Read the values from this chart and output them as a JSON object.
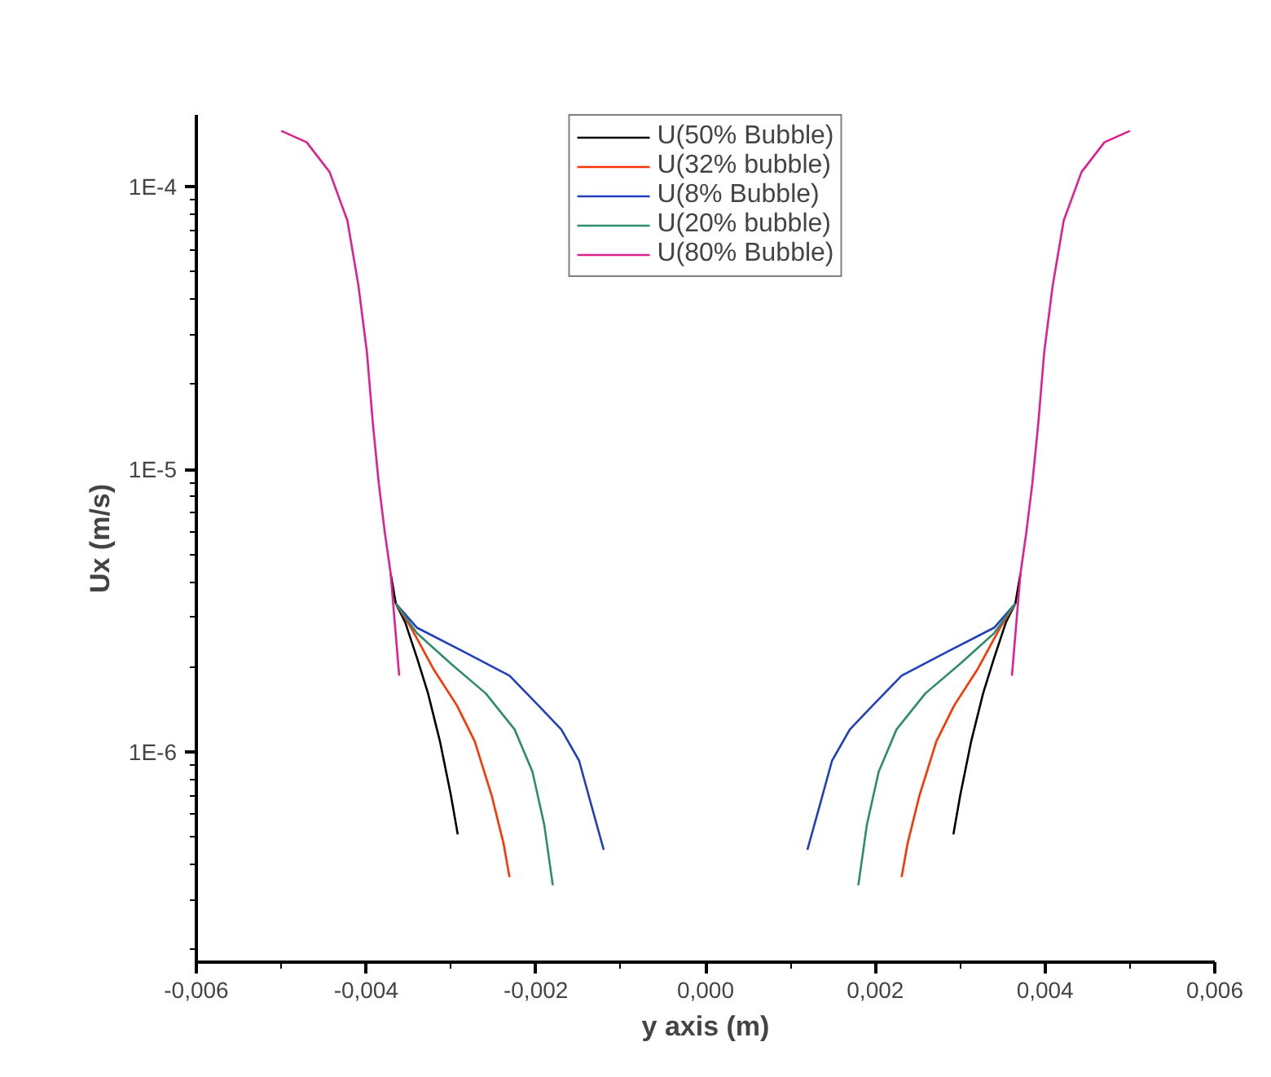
{
  "chart_data": {
    "type": "line",
    "xlabel": "y axis (m)",
    "ylabel": "Ux (m/s)",
    "log": "y",
    "grid": false,
    "legend": "top",
    "marker": "none",
    "line_style": "solid",
    "xlim": [
      -0.006,
      0.006
    ],
    "ylim": [
      1.8e-07,
      0.00018
    ],
    "xticks": [
      {
        "value": -0.006,
        "label": "-0,006"
      },
      {
        "value": -0.004,
        "label": "-0,004"
      },
      {
        "value": -0.002,
        "label": "-0,002"
      },
      {
        "value": 0,
        "label": "0,000"
      },
      {
        "value": 0.002,
        "label": "0,002"
      },
      {
        "value": 0.004,
        "label": "0,004"
      },
      {
        "value": 0.006,
        "label": "0,006"
      }
    ],
    "yticks": [
      {
        "value": 1e-06,
        "label": "1E-6"
      },
      {
        "value": 1e-05,
        "label": "1E-5"
      },
      {
        "value": 0.0001,
        "label": "1E-4"
      }
    ],
    "series": [
      {
        "name": "U(50% Bubble)",
        "color": "#000000",
        "x": [
          -0.00371,
          -0.00365,
          -0.00354,
          -0.0034,
          -0.00327,
          -0.00313,
          -0.003,
          -0.00292,
          null,
          0.00292,
          0.003,
          0.00313,
          0.00327,
          0.0034,
          0.00354,
          0.00365,
          0.00371
        ],
        "values": [
          4.27e-06,
          3.35e-06,
          2.88e-06,
          2.15e-06,
          1.61e-06,
          1.09e-06,
          7e-07,
          5.1e-07,
          null,
          5.1e-07,
          7e-07,
          1.09e-06,
          1.61e-06,
          2.15e-06,
          2.88e-06,
          3.35e-06,
          4.27e-06
        ]
      },
      {
        "name": "U(32% bubble)",
        "color": "#ff3300",
        "x": [
          -0.00365,
          -0.00347,
          -0.0032,
          -0.00293,
          -0.00272,
          -0.00252,
          -0.00238,
          -0.00231,
          null,
          0.00231,
          0.00238,
          0.00252,
          0.00272,
          0.00293,
          0.0032,
          0.00347,
          0.00365
        ],
        "values": [
          3.35e-06,
          2.75e-06,
          1.95e-06,
          1.46e-06,
          1.09e-06,
          7e-07,
          4.73e-07,
          3.6e-07,
          null,
          3.6e-07,
          4.73e-07,
          7e-07,
          1.09e-06,
          1.46e-06,
          1.95e-06,
          2.75e-06,
          3.35e-06
        ]
      },
      {
        "name": "U(8% Bubble)",
        "color": "#1f3fbf",
        "x": [
          -0.00365,
          -0.0034,
          -0.00286,
          -0.00231,
          -0.00197,
          -0.0017,
          -0.00149,
          -0.00136,
          -0.0012,
          null,
          0.0012,
          0.00136,
          0.00149,
          0.0017,
          0.00197,
          0.00231,
          0.00286,
          0.0034,
          0.00365
        ],
        "values": [
          3.35e-06,
          2.75e-06,
          2.27e-06,
          1.86e-06,
          1.46e-06,
          1.2e-06,
          9.3e-07,
          6.7e-07,
          4.5e-07,
          null,
          4.5e-07,
          6.7e-07,
          9.3e-07,
          1.2e-06,
          1.46e-06,
          1.86e-06,
          2.27e-06,
          2.75e-06,
          3.35e-06
        ]
      },
      {
        "name": "U(20% bubble)",
        "color": "#2e8b6e",
        "x": [
          -0.00365,
          -0.0034,
          -0.003,
          -0.00259,
          -0.00225,
          -0.00204,
          -0.0019,
          -0.0018,
          null,
          0.0018,
          0.0019,
          0.00204,
          0.00225,
          0.00259,
          0.003,
          0.0034,
          0.00365
        ],
        "values": [
          3.35e-06,
          2.63e-06,
          2.05e-06,
          1.61e-06,
          1.2e-06,
          8.5e-07,
          5.5e-07,
          3.37e-07,
          null,
          3.37e-07,
          5.5e-07,
          8.5e-07,
          1.2e-06,
          1.61e-06,
          2.05e-06,
          2.63e-06,
          3.35e-06
        ]
      },
      {
        "name": "U(80% Bubble)",
        "color": "#e0208f",
        "x": [
          -0.005,
          -0.0047,
          -0.00443,
          -0.00422,
          -0.00409,
          -0.00399,
          -0.00392,
          -0.00385,
          -0.00378,
          -0.00371,
          -0.00361,
          null,
          0.00361,
          0.00371,
          0.00378,
          0.00385,
          0.00392,
          0.00399,
          0.00409,
          0.00422,
          0.00443,
          0.0047,
          0.005
        ],
        "values": [
          0.000158,
          0.000144,
          0.000113,
          7.6e-05,
          4.47e-05,
          2.6e-05,
          1.45e-05,
          8.9e-06,
          6e-06,
          4.27e-06,
          1.86e-06,
          null,
          1.86e-06,
          4.27e-06,
          6e-06,
          8.9e-06,
          1.45e-05,
          2.6e-05,
          4.47e-05,
          7.6e-05,
          0.000113,
          0.000144,
          0.000158
        ]
      }
    ]
  }
}
